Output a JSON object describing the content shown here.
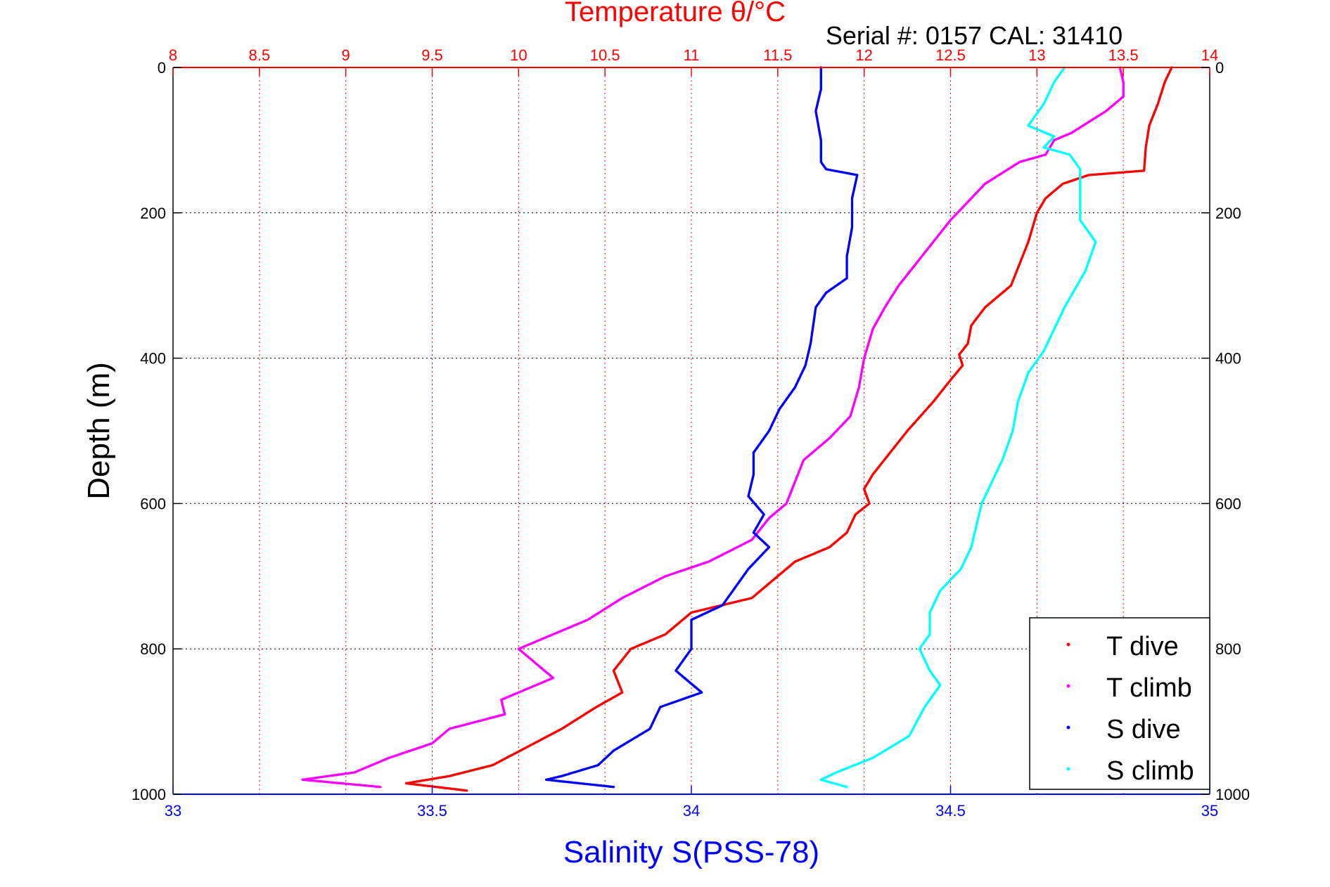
{
  "chart_data": {
    "type": "scatter",
    "title": "Temperature θ/°C",
    "subtitle": "Serial #: 0157  CAL: 31410",
    "xlabel": "Salinity S(PSS-78)",
    "ylabel": "Depth (m)",
    "top_axis": {
      "label": "Temperature θ/°C",
      "range": [
        8,
        14
      ],
      "ticks": [
        "8",
        "8.5",
        "9",
        "9.5",
        "10",
        "10.5",
        "11",
        "11.5",
        "12",
        "12.5",
        "13",
        "13.5",
        "14"
      ],
      "color": "#ff0000"
    },
    "bottom_axis": {
      "label": "Salinity S(PSS-78)",
      "range": [
        33,
        35
      ],
      "ticks": [
        "33",
        "33.5",
        "34",
        "34.5",
        "35"
      ],
      "color": "#0000ff"
    },
    "y_axis": {
      "range": [
        0,
        1000
      ],
      "inverted": true,
      "ticks": [
        "0",
        "200",
        "400",
        "600",
        "800",
        "1000"
      ]
    },
    "grid": true,
    "legend_position": "bottom-right",
    "series": [
      {
        "name": "T dive",
        "axis": "temperature",
        "color": "#ff0000",
        "points": [
          [
            13.78,
            0
          ],
          [
            13.74,
            20
          ],
          [
            13.7,
            50
          ],
          [
            13.65,
            80
          ],
          [
            13.63,
            110
          ],
          [
            13.62,
            142
          ],
          [
            13.3,
            148
          ],
          [
            13.15,
            160
          ],
          [
            13.05,
            180
          ],
          [
            13.0,
            200
          ],
          [
            12.95,
            240
          ],
          [
            12.9,
            270
          ],
          [
            12.85,
            300
          ],
          [
            12.7,
            330
          ],
          [
            12.62,
            355
          ],
          [
            12.6,
            380
          ],
          [
            12.55,
            395
          ],
          [
            12.57,
            410
          ],
          [
            12.5,
            430
          ],
          [
            12.4,
            460
          ],
          [
            12.25,
            500
          ],
          [
            12.15,
            530
          ],
          [
            12.05,
            560
          ],
          [
            12.0,
            580
          ],
          [
            12.03,
            600
          ],
          [
            11.95,
            615
          ],
          [
            11.9,
            640
          ],
          [
            11.8,
            660
          ],
          [
            11.6,
            680
          ],
          [
            11.45,
            710
          ],
          [
            11.35,
            730
          ],
          [
            11.0,
            750
          ],
          [
            10.85,
            780
          ],
          [
            10.65,
            800
          ],
          [
            10.55,
            830
          ],
          [
            10.6,
            860
          ],
          [
            10.45,
            880
          ],
          [
            10.25,
            910
          ],
          [
            10.05,
            935
          ],
          [
            9.85,
            960
          ],
          [
            9.6,
            975
          ],
          [
            9.35,
            985
          ],
          [
            9.7,
            995
          ]
        ]
      },
      {
        "name": "T climb",
        "axis": "temperature",
        "color": "#ff00ff",
        "points": [
          [
            13.48,
            0
          ],
          [
            13.5,
            20
          ],
          [
            13.5,
            40
          ],
          [
            13.4,
            60
          ],
          [
            13.2,
            90
          ],
          [
            13.1,
            100
          ],
          [
            13.05,
            120
          ],
          [
            12.9,
            130
          ],
          [
            12.8,
            145
          ],
          [
            12.7,
            160
          ],
          [
            12.58,
            190
          ],
          [
            12.5,
            210
          ],
          [
            12.4,
            240
          ],
          [
            12.3,
            270
          ],
          [
            12.2,
            300
          ],
          [
            12.12,
            330
          ],
          [
            12.05,
            360
          ],
          [
            12.0,
            400
          ],
          [
            11.97,
            440
          ],
          [
            11.92,
            480
          ],
          [
            11.8,
            510
          ],
          [
            11.65,
            540
          ],
          [
            11.6,
            570
          ],
          [
            11.55,
            600
          ],
          [
            11.45,
            620
          ],
          [
            11.35,
            650
          ],
          [
            11.1,
            680
          ],
          [
            10.85,
            700
          ],
          [
            10.6,
            730
          ],
          [
            10.4,
            760
          ],
          [
            10.1,
            790
          ],
          [
            10.0,
            800
          ],
          [
            10.2,
            840
          ],
          [
            9.9,
            870
          ],
          [
            9.92,
            890
          ],
          [
            9.6,
            910
          ],
          [
            9.5,
            930
          ],
          [
            9.25,
            950
          ],
          [
            9.05,
            970
          ],
          [
            8.75,
            980
          ],
          [
            9.2,
            990
          ]
        ]
      },
      {
        "name": "S dive",
        "axis": "salinity",
        "color": "#0000ff",
        "points": [
          [
            34.25,
            0
          ],
          [
            34.25,
            30
          ],
          [
            34.24,
            60
          ],
          [
            34.25,
            100
          ],
          [
            34.25,
            130
          ],
          [
            34.26,
            140
          ],
          [
            34.32,
            148
          ],
          [
            34.31,
            180
          ],
          [
            34.31,
            220
          ],
          [
            34.3,
            260
          ],
          [
            34.3,
            290
          ],
          [
            34.26,
            310
          ],
          [
            34.24,
            330
          ],
          [
            34.23,
            380
          ],
          [
            34.22,
            410
          ],
          [
            34.2,
            440
          ],
          [
            34.17,
            470
          ],
          [
            34.15,
            500
          ],
          [
            34.12,
            530
          ],
          [
            34.12,
            560
          ],
          [
            34.11,
            590
          ],
          [
            34.14,
            615
          ],
          [
            34.12,
            640
          ],
          [
            34.15,
            660
          ],
          [
            34.11,
            690
          ],
          [
            34.08,
            720
          ],
          [
            34.06,
            740
          ],
          [
            34.0,
            760
          ],
          [
            34.0,
            800
          ],
          [
            33.97,
            830
          ],
          [
            34.02,
            860
          ],
          [
            33.94,
            880
          ],
          [
            33.92,
            910
          ],
          [
            33.85,
            940
          ],
          [
            33.82,
            960
          ],
          [
            33.75,
            975
          ],
          [
            33.72,
            980
          ],
          [
            33.85,
            990
          ]
        ]
      },
      {
        "name": "S climb",
        "axis": "salinity",
        "color": "#00ffff",
        "points": [
          [
            34.72,
            0
          ],
          [
            34.7,
            20
          ],
          [
            34.68,
            50
          ],
          [
            34.65,
            80
          ],
          [
            34.7,
            95
          ],
          [
            34.68,
            110
          ],
          [
            34.73,
            120
          ],
          [
            34.75,
            140
          ],
          [
            34.75,
            180
          ],
          [
            34.75,
            210
          ],
          [
            34.78,
            240
          ],
          [
            34.76,
            280
          ],
          [
            34.72,
            330
          ],
          [
            34.7,
            360
          ],
          [
            34.68,
            390
          ],
          [
            34.65,
            420
          ],
          [
            34.63,
            460
          ],
          [
            34.62,
            500
          ],
          [
            34.6,
            540
          ],
          [
            34.58,
            570
          ],
          [
            34.56,
            600
          ],
          [
            34.55,
            630
          ],
          [
            34.54,
            660
          ],
          [
            34.52,
            690
          ],
          [
            34.48,
            720
          ],
          [
            34.46,
            750
          ],
          [
            34.46,
            780
          ],
          [
            34.44,
            800
          ],
          [
            34.46,
            830
          ],
          [
            34.48,
            850
          ],
          [
            34.45,
            880
          ],
          [
            34.42,
            920
          ],
          [
            34.35,
            950
          ],
          [
            34.28,
            970
          ],
          [
            34.25,
            980
          ],
          [
            34.3,
            990
          ]
        ]
      }
    ]
  }
}
